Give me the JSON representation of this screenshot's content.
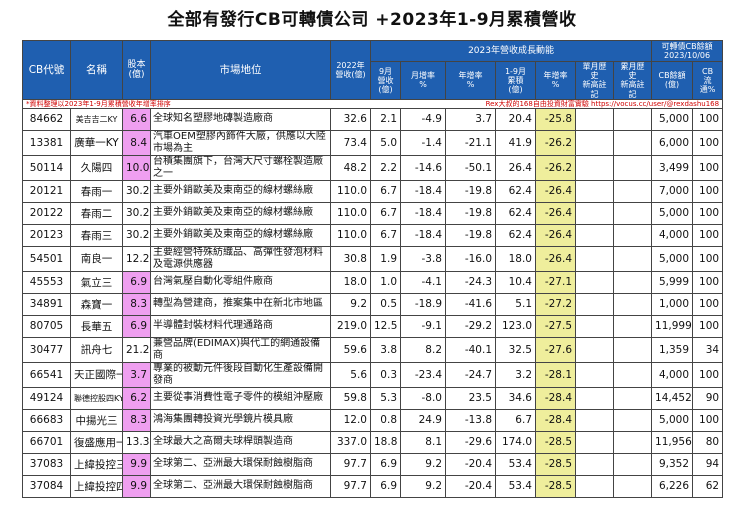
{
  "title": "全部有發行CB可轉債公司 +2023年1-9月累積營收",
  "header": {
    "cb_code": "CB代號",
    "name": "名稱",
    "equity": "股本\n(億)",
    "market_position": "市場地位",
    "rev2022": "2022年\n營收(億)",
    "growth_group": "2023年營收成長動能",
    "sep_rev": "9月\n營收\n(億)",
    "mom": "月增率\n%",
    "yoy": "年增率\n%",
    "cum_rev": "1-9月\n累積\n(億)",
    "cum_yoy": "年增率\n%",
    "monthly_high": "單月歷史\n新高註記",
    "cum_high": "累月歷史\n新高註記",
    "cb_group": "可轉債CB餘額\n2023/10/06",
    "cb_balance": "CB餘額\n(億)",
    "cb_ratio": "CB\n流通%"
  },
  "note_left": "*資料整理以2023年1-9月累積營收年增率排序",
  "note_right": "Rex大叔的168自由投資財富實驗 https://vocus.cc/user/@rexdashu168",
  "rows": [
    {
      "code": "84662",
      "name": "美吉吉二KY",
      "equity": "6.6",
      "desc": "全球知名塑膠地磚製造廠商",
      "rev2022": "32.6",
      "sep": "2.1",
      "mom": "-4.9",
      "yoy": "3.7",
      "cum": "20.4",
      "cumyoy": "-25.8",
      "mh": "",
      "ch": "",
      "cb": "5,000",
      "pct": "100"
    },
    {
      "code": "13381",
      "name": "廣華一KY",
      "equity": "8.4",
      "desc": "汽車OEM塑膠內飾件大廠，供應以大陸市場為主",
      "rev2022": "73.4",
      "sep": "5.0",
      "mom": "-1.4",
      "yoy": "-21.1",
      "cum": "41.9",
      "cumyoy": "-26.2",
      "mh": "",
      "ch": "",
      "cb": "6,000",
      "pct": "100"
    },
    {
      "code": "50114",
      "name": "久陽四",
      "equity": "10.0",
      "desc": "台積集團旗下，台灣大尺寸螺栓製造廠之一",
      "rev2022": "48.2",
      "sep": "2.2",
      "mom": "-14.6",
      "yoy": "-50.1",
      "cum": "26.4",
      "cumyoy": "-26.2",
      "mh": "",
      "ch": "",
      "cb": "3,499",
      "pct": "100"
    },
    {
      "code": "20121",
      "name": "春雨一",
      "equity": "30.2",
      "desc": "主要外銷歐美及東南亞的線材螺絲廠",
      "rev2022": "110.0",
      "sep": "6.7",
      "mom": "-18.4",
      "yoy": "-19.8",
      "cum": "62.4",
      "cumyoy": "-26.4",
      "mh": "",
      "ch": "",
      "cb": "7,000",
      "pct": "100"
    },
    {
      "code": "20122",
      "name": "春雨二",
      "equity": "30.2",
      "desc": "主要外銷歐美及東南亞的線材螺絲廠",
      "rev2022": "110.0",
      "sep": "6.7",
      "mom": "-18.4",
      "yoy": "-19.8",
      "cum": "62.4",
      "cumyoy": "-26.4",
      "mh": "",
      "ch": "",
      "cb": "5,000",
      "pct": "100"
    },
    {
      "code": "20123",
      "name": "春雨三",
      "equity": "30.2",
      "desc": "主要外銷歐美及東南亞的線材螺絲廠",
      "rev2022": "110.0",
      "sep": "6.7",
      "mom": "-18.4",
      "yoy": "-19.8",
      "cum": "62.4",
      "cumyoy": "-26.4",
      "mh": "",
      "ch": "",
      "cb": "4,000",
      "pct": "100"
    },
    {
      "code": "54501",
      "name": "南良一",
      "equity": "12.2",
      "desc": "主要經營特殊紡織品、高彈性發泡材料及電源供應器",
      "rev2022": "30.8",
      "sep": "1.9",
      "mom": "-3.8",
      "yoy": "-16.0",
      "cum": "18.0",
      "cumyoy": "-26.4",
      "mh": "",
      "ch": "",
      "cb": "5,000",
      "pct": "100"
    },
    {
      "code": "45553",
      "name": "氣立三",
      "equity": "6.9",
      "desc": "台灣氣壓自動化零組件廠商",
      "rev2022": "18.0",
      "sep": "1.0",
      "mom": "-4.1",
      "yoy": "-24.3",
      "cum": "10.4",
      "cumyoy": "-27.1",
      "mh": "",
      "ch": "",
      "cb": "5,999",
      "pct": "100"
    },
    {
      "code": "34891",
      "name": "森寶一",
      "equity": "8.3",
      "desc": "轉型為營建商，推案集中在新北市地區",
      "rev2022": "9.2",
      "sep": "0.5",
      "mom": "-18.9",
      "yoy": "-41.6",
      "cum": "5.1",
      "cumyoy": "-27.2",
      "mh": "",
      "ch": "",
      "cb": "1,000",
      "pct": "100"
    },
    {
      "code": "80705",
      "name": "長華五",
      "equity": "6.9",
      "desc": "半導體封裝材料代理通路商",
      "rev2022": "219.0",
      "sep": "12.5",
      "mom": "-9.1",
      "yoy": "-29.2",
      "cum": "123.0",
      "cumyoy": "-27.5",
      "mh": "",
      "ch": "",
      "cb": "11,999",
      "pct": "100"
    },
    {
      "code": "30477",
      "name": "訊舟七",
      "equity": "21.2",
      "desc": "兼營品牌(EDIMAX)與代工的網通設備商",
      "rev2022": "59.6",
      "sep": "3.8",
      "mom": "8.2",
      "yoy": "-40.1",
      "cum": "32.5",
      "cumyoy": "-27.6",
      "mh": "",
      "ch": "",
      "cb": "1,359",
      "pct": "34"
    },
    {
      "code": "66541",
      "name": "天正國際一",
      "equity": "3.7",
      "desc": "專業的被動元件後段自動化生產設備開發商",
      "rev2022": "5.6",
      "sep": "0.3",
      "mom": "-23.4",
      "yoy": "-24.7",
      "cum": "3.2",
      "cumyoy": "-28.1",
      "mh": "",
      "ch": "",
      "cb": "4,000",
      "pct": "100"
    },
    {
      "code": "49124",
      "name": "聯德控股四KY",
      "equity": "6.2",
      "desc": "主要從事消費性電子零件的模組沖壓廠",
      "rev2022": "59.8",
      "sep": "5.3",
      "mom": "-8.0",
      "yoy": "23.5",
      "cum": "34.6",
      "cumyoy": "-28.4",
      "mh": "",
      "ch": "",
      "cb": "14,452",
      "pct": "90"
    },
    {
      "code": "66683",
      "name": "中揚光三",
      "equity": "8.3",
      "desc": "鴻海集團轉投資光學鏡片模具廠",
      "rev2022": "12.0",
      "sep": "0.8",
      "mom": "24.9",
      "yoy": "-13.8",
      "cum": "6.7",
      "cumyoy": "-28.4",
      "mh": "",
      "ch": "",
      "cb": "5,000",
      "pct": "100"
    },
    {
      "code": "66701",
      "name": "復盛應用一",
      "equity": "13.3",
      "desc": "全球最大之高爾夫球桿頭製造商",
      "rev2022": "337.0",
      "sep": "18.8",
      "mom": "8.1",
      "yoy": "-29.6",
      "cum": "174.0",
      "cumyoy": "-28.5",
      "mh": "",
      "ch": "",
      "cb": "11,956",
      "pct": "80"
    },
    {
      "code": "37083",
      "name": "上緯投控三",
      "equity": "9.9",
      "desc": "全球第二、亞洲最大環保耐蝕樹脂商",
      "rev2022": "97.7",
      "sep": "6.9",
      "mom": "9.2",
      "yoy": "-20.4",
      "cum": "53.4",
      "cumyoy": "-28.5",
      "mh": "",
      "ch": "",
      "cb": "9,352",
      "pct": "94"
    },
    {
      "code": "37084",
      "name": "上緯投控四",
      "equity": "9.9",
      "desc": "全球第二、亞洲最大環保耐蝕樹脂商",
      "rev2022": "97.7",
      "sep": "6.9",
      "mom": "9.2",
      "yoy": "-20.4",
      "cum": "53.4",
      "cumyoy": "-28.5",
      "mh": "",
      "ch": "",
      "cb": "6,226",
      "pct": "62"
    }
  ],
  "colors": {
    "header_bg": "#1f5fb0",
    "highlight_pink": "#ef9ff0",
    "highlight_yellow": "#efee9c",
    "note_red": "#d00000"
  }
}
